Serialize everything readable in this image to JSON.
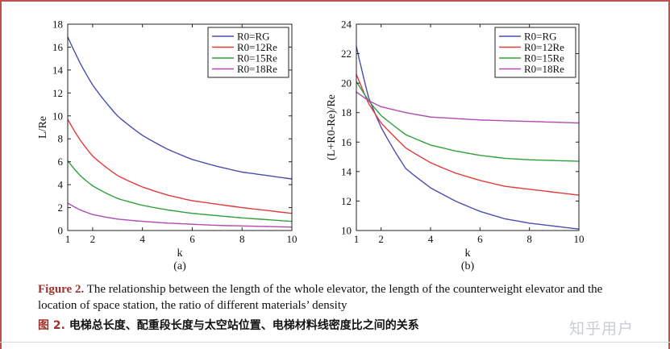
{
  "chart_data": [
    {
      "type": "line",
      "panel_label": "(a)",
      "xlabel": "k",
      "ylabel": "L/Re",
      "xlim": [
        1,
        10
      ],
      "ylim": [
        0,
        18
      ],
      "xticks": [
        1,
        2,
        4,
        6,
        8,
        10
      ],
      "yticks": [
        0,
        2,
        4,
        6,
        8,
        10,
        12,
        14,
        16,
        18
      ],
      "legend_position": "top-right",
      "x": [
        1,
        1.5,
        2,
        3,
        4,
        5,
        6,
        7,
        8,
        9,
        10
      ],
      "series": [
        {
          "name": "R0=RG",
          "color": "#4a4eb0",
          "values": [
            16.9,
            14.6,
            12.7,
            10.0,
            8.3,
            7.1,
            6.2,
            5.6,
            5.1,
            4.8,
            4.5
          ]
        },
        {
          "name": "R0=12Re",
          "color": "#e33a3a",
          "values": [
            9.7,
            7.9,
            6.5,
            4.8,
            3.8,
            3.1,
            2.6,
            2.3,
            2.0,
            1.75,
            1.5
          ]
        },
        {
          "name": "R0=15Re",
          "color": "#2fa03a",
          "values": [
            6.1,
            4.8,
            3.9,
            2.8,
            2.2,
            1.8,
            1.5,
            1.3,
            1.1,
            0.95,
            0.8
          ]
        },
        {
          "name": "R0=18Re",
          "color": "#b04ab0",
          "values": [
            2.4,
            1.8,
            1.4,
            1.0,
            0.8,
            0.65,
            0.55,
            0.45,
            0.4,
            0.35,
            0.3
          ]
        }
      ]
    },
    {
      "type": "line",
      "panel_label": "(b)",
      "xlabel": "k",
      "ylabel": "(L+R0-Re)/Re",
      "xlim": [
        1,
        10
      ],
      "ylim": [
        10,
        24
      ],
      "xticks": [
        1,
        2,
        4,
        6,
        8,
        10
      ],
      "yticks": [
        10,
        12,
        14,
        16,
        18,
        20,
        22,
        24
      ],
      "legend_position": "top-right",
      "x": [
        1,
        1.5,
        2,
        3,
        4,
        5,
        6,
        7,
        8,
        9,
        10
      ],
      "series": [
        {
          "name": "R0=RG",
          "color": "#4a4eb0",
          "values": [
            22.5,
            19.0,
            17.0,
            14.2,
            12.9,
            12.0,
            11.3,
            10.8,
            10.5,
            10.3,
            10.1
          ]
        },
        {
          "name": "R0=12Re",
          "color": "#e33a3a",
          "values": [
            20.6,
            18.6,
            17.3,
            15.6,
            14.6,
            13.9,
            13.4,
            13.0,
            12.8,
            12.6,
            12.4
          ]
        },
        {
          "name": "R0=15Re",
          "color": "#2fa03a",
          "values": [
            20.1,
            18.8,
            17.8,
            16.5,
            15.8,
            15.4,
            15.1,
            14.9,
            14.8,
            14.75,
            14.7
          ]
        },
        {
          "name": "R0=18Re",
          "color": "#b04ab0",
          "values": [
            19.4,
            18.8,
            18.4,
            18.0,
            17.7,
            17.6,
            17.5,
            17.45,
            17.4,
            17.35,
            17.3
          ]
        }
      ]
    }
  ],
  "caption": {
    "en_label": "Figure 2.",
    "en_text": "The relationship between the length of the whole elevator, the length of the counterweight elevator and the location of space station, the ratio of different materials’ density",
    "cn_label": "图 2.",
    "cn_text": "电梯总长度、配重段长度与太空站位置、电梯材料线密度比之间的关系"
  },
  "watermark": "知乎用户"
}
